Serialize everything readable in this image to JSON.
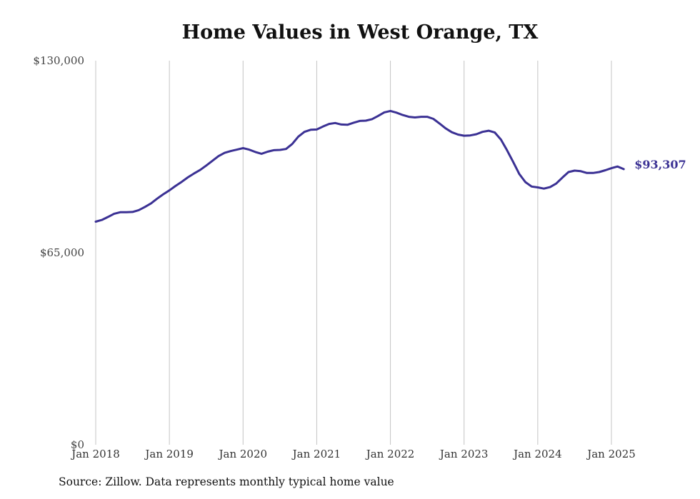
{
  "chart_data": {
    "type": "line",
    "title": "Home Values in West Orange, TX",
    "source_note": "Source: Zillow. Data represents monthly typical home value",
    "ylim": [
      0,
      130000
    ],
    "y_ticks": [
      {
        "value": 0,
        "label": "$0"
      },
      {
        "value": 65000,
        "label": "$65,000"
      },
      {
        "value": 130000,
        "label": "$130,000"
      }
    ],
    "x_ticks": [
      {
        "value": 2018,
        "label": "Jan 2018"
      },
      {
        "value": 2019,
        "label": "Jan 2019"
      },
      {
        "value": 2020,
        "label": "Jan 2020"
      },
      {
        "value": 2021,
        "label": "Jan 2021"
      },
      {
        "value": 2022,
        "label": "Jan 2022"
      },
      {
        "value": 2023,
        "label": "Jan 2023"
      },
      {
        "value": 2024,
        "label": "Jan 2024"
      },
      {
        "value": 2025,
        "label": "Jan 2025"
      }
    ],
    "xlim": [
      2018,
      2025
    ],
    "grid": "vertical",
    "line_color": "#3b3194",
    "end_label": "$93,307",
    "x": [
      2018.0,
      2018.083,
      2018.167,
      2018.25,
      2018.333,
      2018.417,
      2018.5,
      2018.583,
      2018.667,
      2018.75,
      2018.833,
      2018.917,
      2019.0,
      2019.083,
      2019.167,
      2019.25,
      2019.333,
      2019.417,
      2019.5,
      2019.583,
      2019.667,
      2019.75,
      2019.833,
      2019.917,
      2020.0,
      2020.083,
      2020.167,
      2020.25,
      2020.333,
      2020.417,
      2020.5,
      2020.583,
      2020.667,
      2020.75,
      2020.833,
      2020.917,
      2021.0,
      2021.083,
      2021.167,
      2021.25,
      2021.333,
      2021.417,
      2021.5,
      2021.583,
      2021.667,
      2021.75,
      2021.833,
      2021.917,
      2022.0,
      2022.083,
      2022.167,
      2022.25,
      2022.333,
      2022.417,
      2022.5,
      2022.583,
      2022.667,
      2022.75,
      2022.833,
      2022.917,
      2023.0,
      2023.083,
      2023.167,
      2023.25,
      2023.333,
      2023.417,
      2023.5,
      2023.583,
      2023.667,
      2023.75,
      2023.833,
      2023.917,
      2024.0,
      2024.083,
      2024.167,
      2024.25,
      2024.333,
      2024.417,
      2024.5,
      2024.583,
      2024.667,
      2024.75,
      2024.833,
      2024.917,
      2025.0,
      2025.083,
      2025.167
    ],
    "series": [
      {
        "values": [
          75500,
          76100,
          77100,
          78200,
          78700,
          78700,
          78800,
          79400,
          80500,
          81700,
          83300,
          84800,
          86100,
          87600,
          89000,
          90500,
          91800,
          93000,
          94500,
          96100,
          97700,
          98800,
          99400,
          99900,
          100400,
          99900,
          99100,
          98500,
          99200,
          99700,
          99800,
          100100,
          101800,
          104300,
          105900,
          106600,
          106700,
          107700,
          108600,
          108900,
          108400,
          108300,
          109000,
          109600,
          109700,
          110200,
          111300,
          112500,
          113000,
          112400,
          111600,
          111000,
          110800,
          111000,
          111000,
          110300,
          108700,
          107100,
          105800,
          105000,
          104600,
          104700,
          105100,
          105900,
          106300,
          105700,
          103300,
          99700,
          95700,
          91600,
          88900,
          87400,
          87100,
          86700,
          87200,
          88400,
          90400,
          92300,
          92800,
          92600,
          92000,
          92000,
          92300,
          92900,
          93600,
          94200,
          93307
        ]
      }
    ]
  }
}
